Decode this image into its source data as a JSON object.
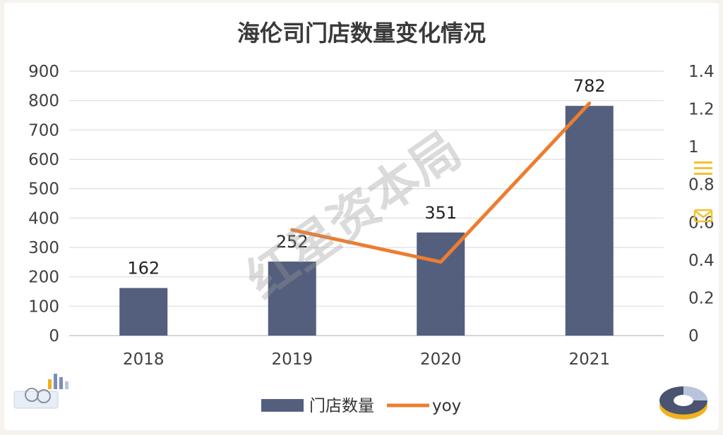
{
  "chart_data": {
    "type": "bar",
    "title": "海伦司门店数量变化情况",
    "categories": [
      "2018",
      "2019",
      "2020",
      "2021"
    ],
    "series": [
      {
        "name": "门店数量",
        "type": "bar",
        "axis": "left",
        "color": "#545f7d",
        "values": [
          162,
          252,
          351,
          782
        ]
      },
      {
        "name": "yoy",
        "type": "line",
        "axis": "right",
        "color": "#ed7d31",
        "values": [
          null,
          0.56,
          0.39,
          1.23
        ]
      }
    ],
    "data_labels": [
      "162",
      "252",
      "351",
      "782"
    ],
    "y_left": {
      "ticks": [
        "0",
        "100",
        "200",
        "300",
        "400",
        "500",
        "600",
        "700",
        "800",
        "900"
      ],
      "ylim": [
        0,
        900
      ]
    },
    "y_right": {
      "ticks": [
        "0",
        "0.2",
        "0.4",
        "0.6",
        "0.8",
        "1",
        "1.2",
        "1.4"
      ],
      "ylim": [
        0,
        1.4
      ]
    },
    "grid": true,
    "legend_position": "bottom"
  },
  "watermark": "红星资本局"
}
